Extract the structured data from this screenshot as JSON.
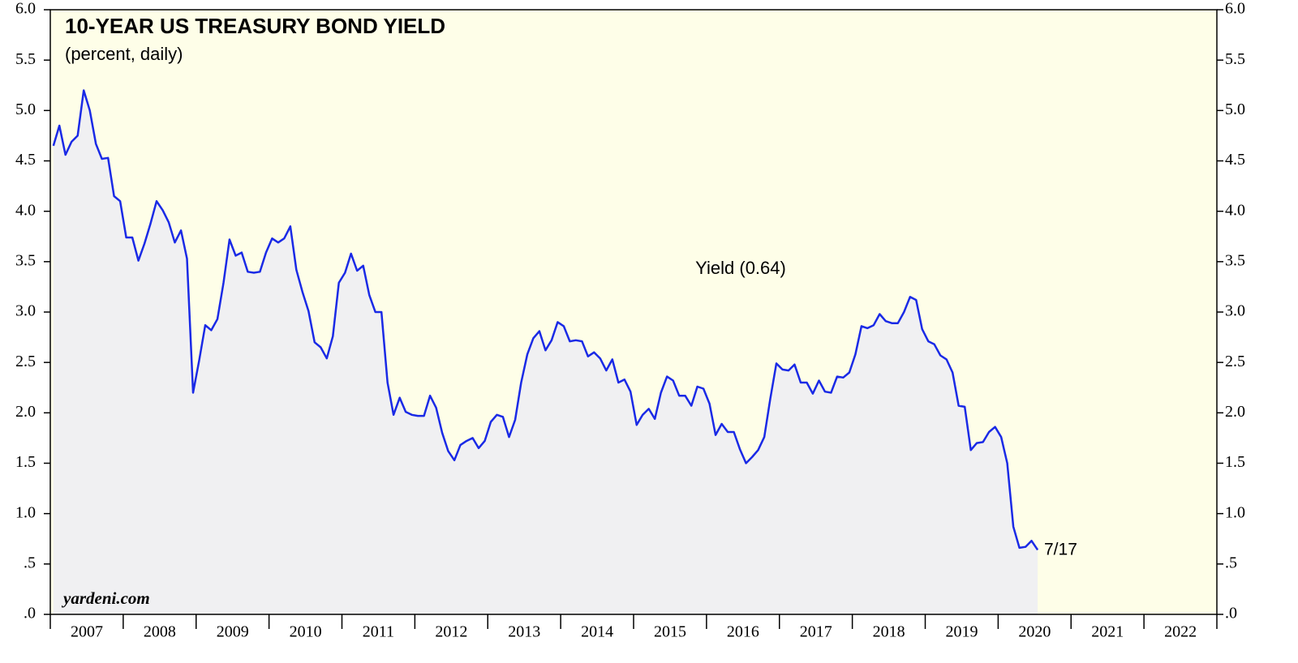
{
  "chart_data": {
    "type": "line",
    "title": "10-YEAR US TREASURY BOND YIELD",
    "subtitle": "(percent, daily)",
    "annotations": {
      "series_label": "Yield (0.64)",
      "end_date": "7/17",
      "source": "yardeni.com"
    },
    "xlim": [
      2007,
      2023
    ],
    "xticks": [
      {
        "value": 2007.5,
        "label": "2007"
      },
      {
        "value": 2008.5,
        "label": "2008"
      },
      {
        "value": 2009.5,
        "label": "2009"
      },
      {
        "value": 2010.5,
        "label": "2010"
      },
      {
        "value": 2011.5,
        "label": "2011"
      },
      {
        "value": 2012.5,
        "label": "2012"
      },
      {
        "value": 2013.5,
        "label": "2013"
      },
      {
        "value": 2014.5,
        "label": "2014"
      },
      {
        "value": 2015.5,
        "label": "2015"
      },
      {
        "value": 2016.5,
        "label": "2016"
      },
      {
        "value": 2017.5,
        "label": "2017"
      },
      {
        "value": 2018.5,
        "label": "2018"
      },
      {
        "value": 2019.5,
        "label": "2019"
      },
      {
        "value": 2020.5,
        "label": "2020"
      },
      {
        "value": 2021.5,
        "label": "2021"
      },
      {
        "value": 2022.5,
        "label": "2022"
      }
    ],
    "ylim": [
      0,
      6
    ],
    "yticks": [
      {
        "value": 0,
        "label": ".0"
      },
      {
        "value": 0.5,
        "label": ".5"
      },
      {
        "value": 1,
        "label": "1.0"
      },
      1.5,
      {
        "value": 2,
        "label": "2.0"
      },
      2.5,
      {
        "value": 3,
        "label": "3.0"
      },
      3.5,
      {
        "value": 4,
        "label": "4.0"
      },
      4.5,
      {
        "value": 5,
        "label": "5.0"
      },
      5.5,
      {
        "value": 6,
        "label": "6.0"
      }
    ],
    "background": "#fefee8",
    "area_color": "#f0f0f2",
    "series": [
      {
        "name": "Yield",
        "color": "#1a2ae6",
        "x": [
          2007.042,
          2007.125,
          2007.208,
          2007.292,
          2007.375,
          2007.458,
          2007.542,
          2007.625,
          2007.708,
          2007.792,
          2007.875,
          2007.958,
          2008.042,
          2008.125,
          2008.208,
          2008.292,
          2008.375,
          2008.458,
          2008.542,
          2008.625,
          2008.708,
          2008.792,
          2008.875,
          2008.958,
          2009.042,
          2009.125,
          2009.208,
          2009.292,
          2009.375,
          2009.458,
          2009.542,
          2009.625,
          2009.708,
          2009.792,
          2009.875,
          2009.958,
          2010.042,
          2010.125,
          2010.208,
          2010.292,
          2010.375,
          2010.458,
          2010.542,
          2010.625,
          2010.708,
          2010.792,
          2010.875,
          2010.958,
          2011.042,
          2011.125,
          2011.208,
          2011.292,
          2011.375,
          2011.458,
          2011.542,
          2011.625,
          2011.708,
          2011.792,
          2011.875,
          2011.958,
          2012.042,
          2012.125,
          2012.208,
          2012.292,
          2012.375,
          2012.458,
          2012.542,
          2012.625,
          2012.708,
          2012.792,
          2012.875,
          2012.958,
          2013.042,
          2013.125,
          2013.208,
          2013.292,
          2013.375,
          2013.458,
          2013.542,
          2013.625,
          2013.708,
          2013.792,
          2013.875,
          2013.958,
          2014.042,
          2014.125,
          2014.208,
          2014.292,
          2014.375,
          2014.458,
          2014.542,
          2014.625,
          2014.708,
          2014.792,
          2014.875,
          2014.958,
          2015.042,
          2015.125,
          2015.208,
          2015.292,
          2015.375,
          2015.458,
          2015.542,
          2015.625,
          2015.708,
          2015.792,
          2015.875,
          2015.958,
          2016.042,
          2016.125,
          2016.208,
          2016.292,
          2016.375,
          2016.458,
          2016.542,
          2016.625,
          2016.708,
          2016.792,
          2016.875,
          2016.958,
          2017.042,
          2017.125,
          2017.208,
          2017.292,
          2017.375,
          2017.458,
          2017.542,
          2017.625,
          2017.708,
          2017.792,
          2017.875,
          2017.958,
          2018.042,
          2018.125,
          2018.208,
          2018.292,
          2018.375,
          2018.458,
          2018.542,
          2018.625,
          2018.708,
          2018.792,
          2018.875,
          2018.958,
          2019.042,
          2019.125,
          2019.208,
          2019.292,
          2019.375,
          2019.458,
          2019.542,
          2019.625,
          2019.708,
          2019.792,
          2019.875,
          2019.958,
          2020.042,
          2020.125,
          2020.208,
          2020.292,
          2020.375,
          2020.458,
          2020.542
        ],
        "values": [
          4.65,
          4.85,
          4.56,
          4.69,
          4.75,
          5.2,
          5.0,
          4.67,
          4.52,
          4.53,
          4.15,
          4.1,
          3.74,
          3.74,
          3.51,
          3.68,
          3.88,
          4.1,
          4.01,
          3.89,
          3.69,
          3.81,
          3.53,
          2.2,
          2.52,
          2.87,
          2.82,
          2.93,
          3.29,
          3.72,
          3.56,
          3.59,
          3.4,
          3.39,
          3.4,
          3.59,
          3.73,
          3.69,
          3.73,
          3.85,
          3.42,
          3.2,
          3.01,
          2.7,
          2.65,
          2.54,
          2.76,
          3.29,
          3.39,
          3.58,
          3.41,
          3.46,
          3.17,
          3.0,
          3.0,
          2.3,
          1.98,
          2.15,
          2.01,
          1.98,
          1.97,
          1.97,
          2.17,
          2.05,
          1.8,
          1.62,
          1.53,
          1.68,
          1.72,
          1.75,
          1.65,
          1.72,
          1.91,
          1.98,
          1.96,
          1.76,
          1.93,
          2.3,
          2.58,
          2.74,
          2.81,
          2.62,
          2.72,
          2.9,
          2.86,
          2.71,
          2.72,
          2.71,
          2.56,
          2.6,
          2.54,
          2.42,
          2.53,
          2.3,
          2.33,
          2.21,
          1.88,
          1.98,
          2.04,
          1.94,
          2.2,
          2.36,
          2.32,
          2.17,
          2.17,
          2.07,
          2.26,
          2.24,
          2.09,
          1.78,
          1.89,
          1.81,
          1.81,
          1.64,
          1.5,
          1.56,
          1.63,
          1.76,
          2.14,
          2.49,
          2.43,
          2.42,
          2.48,
          2.3,
          2.3,
          2.19,
          2.32,
          2.21,
          2.2,
          2.36,
          2.35,
          2.4,
          2.58,
          2.86,
          2.84,
          2.87,
          2.98,
          2.91,
          2.89,
          2.89,
          3.0,
          3.15,
          3.12,
          2.83,
          2.71,
          2.68,
          2.57,
          2.53,
          2.4,
          2.07,
          2.06,
          1.63,
          1.7,
          1.71,
          1.81,
          1.86,
          1.76,
          1.5,
          0.87,
          0.66,
          0.67,
          0.73,
          0.64
        ]
      }
    ]
  }
}
